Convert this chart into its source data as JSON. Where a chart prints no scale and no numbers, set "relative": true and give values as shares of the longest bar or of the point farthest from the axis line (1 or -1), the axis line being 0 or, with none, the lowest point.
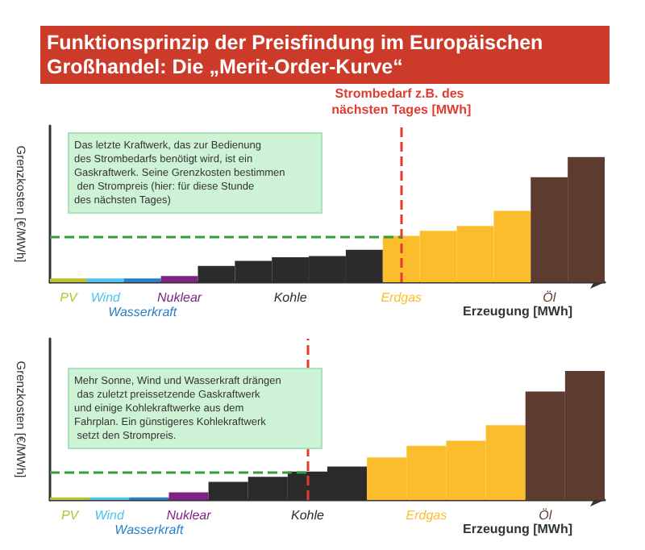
{
  "chart_data": [
    {
      "type": "bar",
      "title": "Funktionsprinzip der Preisfindung im Europäischen Großhandel: Die „Merit-Order-Kurve“",
      "xlabel": "Erzeugung [MWh]",
      "ylabel": "Grenzkosten [€/MWh]",
      "relative": true,
      "categories": [
        "PV",
        "Wind",
        "Wasserkraft",
        "Nuklear",
        null,
        null,
        "Kohle",
        null,
        null,
        "Erdgas",
        null,
        null,
        null,
        "Öl",
        null
      ],
      "values": [
        0.03,
        0.03,
        0.03,
        0.05,
        0.13,
        0.17,
        0.2,
        0.21,
        0.26,
        0.37,
        0.41,
        0.45,
        0.57,
        0.84,
        1
      ],
      "colors": [
        "#b8c22d",
        "#4fc3f0",
        "#2a7fc4",
        "#7d2383",
        "#2b2b2b",
        "#2b2b2b",
        "#2b2b2b",
        "#2b2b2b",
        "#2b2b2b",
        "#fbbd2c",
        "#fbbd2c",
        "#fbbd2c",
        "#fbbd2c",
        "#5d3b2e",
        "#5d3b2e"
      ],
      "ref_lines": [
        {
          "axis": "x",
          "value": "Erdgas",
          "label": "Strombedarf z.B. des nächsten Tages [MWh]",
          "color": "#e03c31",
          "line_style": "dashed"
        },
        {
          "axis": "y",
          "value": 0.37,
          "color": "#2e9e3e",
          "line_style": "dashed"
        }
      ],
      "annotations": [
        "Das letzte Kraftwerk, das zur Bedienung des Strombedarfs benötigt wird, ist ein Gaskraftwerk. Seine Grenzkosten bestimmen den Strompreis (hier: für diese Stunde des nächsten Tages)"
      ]
    },
    {
      "type": "bar",
      "xlabel": "Erzeugung [MWh]",
      "ylabel": "Grenzkosten [€/MWh]",
      "relative": true,
      "categories": [
        "PV",
        "Wind",
        "Wasserkraft",
        "Nuklear",
        null,
        null,
        "Kohle",
        null,
        null,
        "Erdgas",
        null,
        null,
        "Öl",
        null
      ],
      "values": [
        0.02,
        0.02,
        0.02,
        0.06,
        0.14,
        0.18,
        0.22,
        0.26,
        0.33,
        0.42,
        0.46,
        0.58,
        0.84,
        1
      ],
      "colors": [
        "#b8c22d",
        "#4fc3f0",
        "#2a7fc4",
        "#7d2383",
        "#2b2b2b",
        "#2b2b2b",
        "#2b2b2b",
        "#2b2b2b",
        "#fbbd2c",
        "#fbbd2c",
        "#fbbd2c",
        "#fbbd2c",
        "#5d3b2e",
        "#5d3b2e"
      ],
      "ref_lines": [
        {
          "axis": "x",
          "value": "Kohle",
          "color": "#e03c31",
          "line_style": "dashed"
        },
        {
          "axis": "y",
          "value": 0.22,
          "color": "#2e9e3e",
          "line_style": "dashed"
        }
      ],
      "annotations": [
        "Mehr Sonne, Wind und Wasserkraft drängen das zuletzt preissetzende Gaskraftwerk und einige Kohlekraftwerke aus dem Fahrplan. Ein günstigeres Kohlekraftwerk setzt den Strompreis."
      ]
    }
  ]
}
